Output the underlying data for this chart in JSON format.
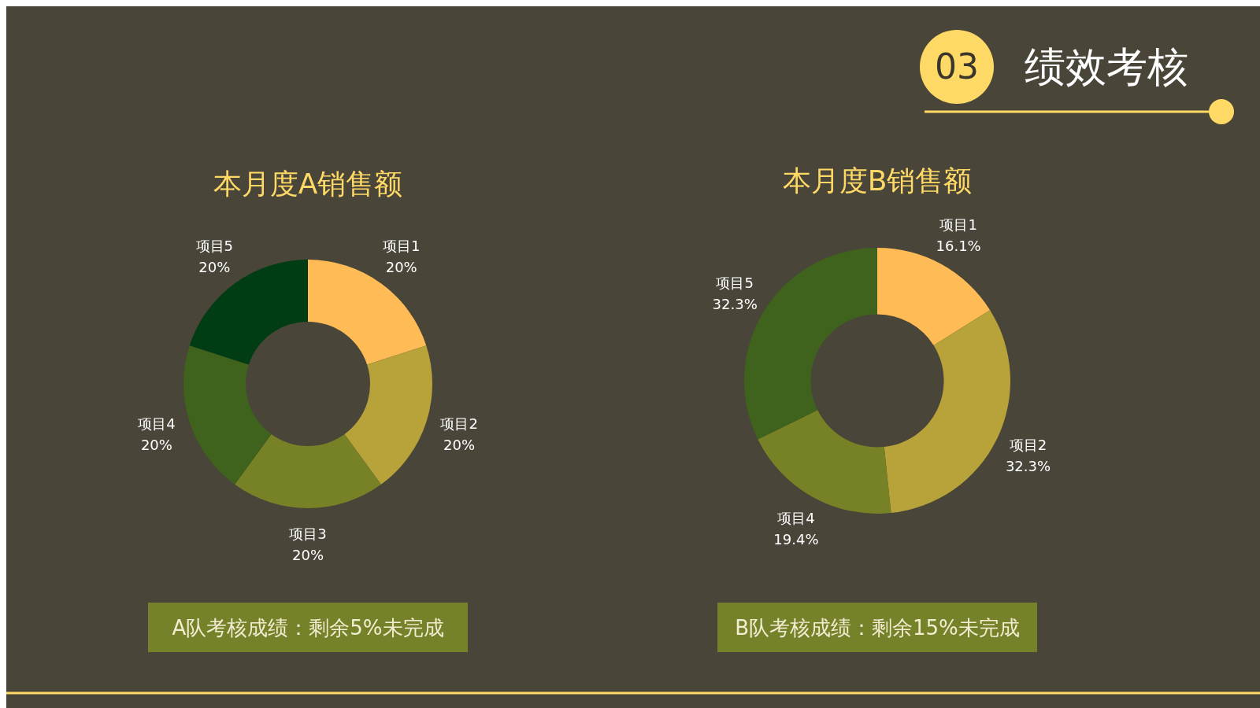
{
  "chart_data": [
    {
      "type": "other",
      "title": "绩效考核",
      "annotations": [
        "03"
      ]
    },
    {
      "type": "donut",
      "title": "本月度A销售额",
      "categories": [
        "项目1",
        "项目2",
        "项目3",
        "项目4",
        "项目5"
      ],
      "values": [
        20,
        20,
        20,
        20,
        20
      ],
      "value_labels": [
        "20%",
        "20%",
        "20%",
        "20%",
        "20%"
      ],
      "colors": [
        "#ffbb55",
        "#b8a23a",
        "#778226",
        "#3f621d",
        "#003d14"
      ],
      "annotations": [
        "A队考核成绩：剩余5%未完成"
      ]
    },
    {
      "type": "donut",
      "title": "本月度B销售额",
      "categories": [
        "项目1",
        "项目2",
        "项目4",
        "项目5"
      ],
      "values": [
        16.1,
        32.3,
        19.4,
        32.3
      ],
      "value_labels": [
        "16.1%",
        "32.3%",
        "19.4%",
        "32.3%"
      ],
      "colors": [
        "#ffbb55",
        "#b8a23a",
        "#778226",
        "#3f621d"
      ],
      "annotations": [
        "B队考核成绩：剩余15%未完成"
      ]
    }
  ]
}
